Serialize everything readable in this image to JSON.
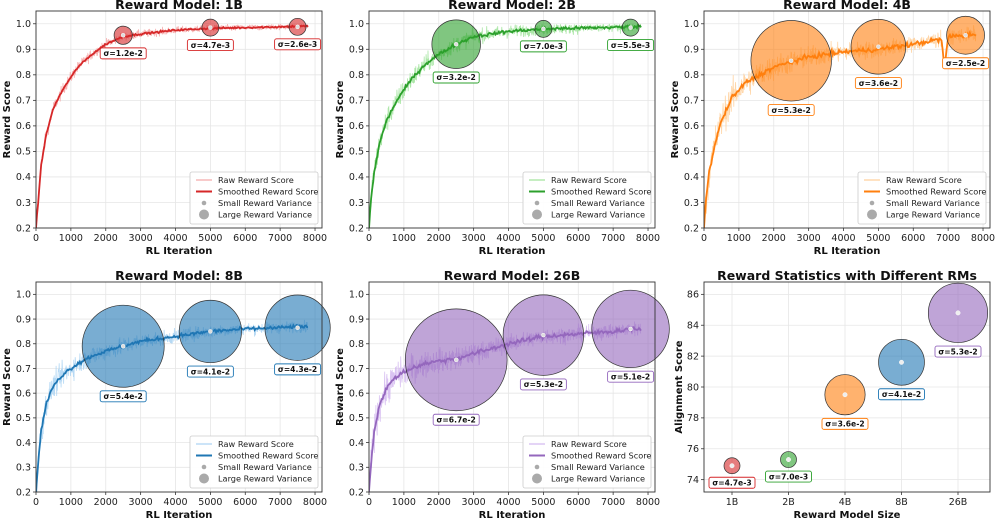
{
  "figure": {
    "panels": [
      {
        "title": "Reward Model: 1B",
        "xlabel": "RL Iteration",
        "ylabel": "Reward Score",
        "xlim": [
          0,
          8200
        ],
        "ylim": [
          0.2,
          1.05
        ],
        "xticks": [
          0,
          1000,
          2000,
          3000,
          4000,
          5000,
          6000,
          7000,
          8000
        ],
        "yticks": [
          0.2,
          0.3,
          0.4,
          0.5,
          0.6,
          0.7,
          0.8,
          0.9,
          1.0
        ],
        "color": "#d62728",
        "light": "#f4a6a6"
      },
      {
        "title": "Reward Model: 2B",
        "xlabel": "RL Iteration",
        "ylabel": "Reward Score",
        "xlim": [
          0,
          8200
        ],
        "ylim": [
          0.2,
          1.05
        ],
        "xticks": [
          0,
          1000,
          2000,
          3000,
          4000,
          5000,
          6000,
          7000,
          8000
        ],
        "yticks": [
          0.2,
          0.3,
          0.4,
          0.5,
          0.6,
          0.7,
          0.8,
          0.9,
          1.0
        ],
        "color": "#2ca02c",
        "light": "#9fe39a"
      },
      {
        "title": "Reward Model: 4B",
        "xlabel": "RL Iteration",
        "ylabel": "Reward Score",
        "xlim": [
          0,
          8200
        ],
        "ylim": [
          0.2,
          1.05
        ],
        "xticks": [
          0,
          1000,
          2000,
          3000,
          4000,
          5000,
          6000,
          7000,
          8000
        ],
        "yticks": [
          0.2,
          0.3,
          0.4,
          0.5,
          0.6,
          0.7,
          0.8,
          0.9,
          1.0
        ],
        "color": "#ff7f0e",
        "light": "#ffcf99"
      },
      {
        "title": "Reward Model: 8B",
        "xlabel": "RL Iteration",
        "ylabel": "Reward Score",
        "xlim": [
          0,
          8200
        ],
        "ylim": [
          0.2,
          1.05
        ],
        "xticks": [
          0,
          1000,
          2000,
          3000,
          4000,
          5000,
          6000,
          7000,
          8000
        ],
        "yticks": [
          0.2,
          0.3,
          0.4,
          0.5,
          0.6,
          0.7,
          0.8,
          0.9,
          1.0
        ],
        "color": "#1f77b4",
        "light": "#a9d2f2"
      },
      {
        "title": "Reward Model: 26B",
        "xlabel": "RL Iteration",
        "ylabel": "Reward Score",
        "xlim": [
          0,
          8200
        ],
        "ylim": [
          0.2,
          1.05
        ],
        "xticks": [
          0,
          1000,
          2000,
          3000,
          4000,
          5000,
          6000,
          7000,
          8000
        ],
        "yticks": [
          0.2,
          0.3,
          0.4,
          0.5,
          0.6,
          0.7,
          0.8,
          0.9,
          1.0
        ],
        "color": "#9467bd",
        "light": "#d3b8f0"
      }
    ],
    "legend": [
      "Raw Reward Score",
      "Smoothed Reward Score",
      "Small Reward Variance",
      "Large Reward Variance"
    ],
    "summary": {
      "title": "Reward Statistics with Different RMs",
      "xlabel": "Reward Model Size",
      "ylabel": "Alignment Score",
      "ylim": [
        73.2,
        86.8
      ],
      "yticks": [
        74,
        76,
        78,
        80,
        82,
        84,
        86
      ],
      "categories": [
        "1B",
        "2B",
        "4B",
        "8B",
        "26B"
      ]
    }
  },
  "chart_data": [
    {
      "type": "line",
      "title": "Reward Model: 1B",
      "xlabel": "RL Iteration",
      "ylabel": "Reward Score",
      "series": [
        {
          "name": "Raw Reward Score",
          "x": [
            0,
            50,
            150,
            300,
            500,
            800,
            1200,
            1600,
            2000,
            2500,
            3000,
            4000,
            5000,
            6000,
            7000,
            7500,
            7800
          ],
          "y": [
            0.2,
            0.28,
            0.45,
            0.57,
            0.67,
            0.75,
            0.83,
            0.88,
            0.92,
            0.95,
            0.96,
            0.975,
            0.982,
            0.985,
            0.988,
            0.99,
            0.99
          ]
        },
        {
          "name": "Smoothed Reward Score",
          "x": [
            0,
            50,
            150,
            300,
            500,
            800,
            1200,
            1600,
            2000,
            2500,
            3000,
            4000,
            5000,
            6000,
            7000,
            7500,
            7800
          ],
          "y": [
            0.2,
            0.28,
            0.45,
            0.57,
            0.67,
            0.75,
            0.83,
            0.88,
            0.92,
            0.95,
            0.96,
            0.975,
            0.982,
            0.985,
            0.988,
            0.99,
            0.99
          ]
        }
      ],
      "variance_points": [
        {
          "x": 2500,
          "y": 0.955,
          "sigma": 0.012,
          "label": "σ=1.2e-2"
        },
        {
          "x": 5000,
          "y": 0.985,
          "sigma": 0.0047,
          "label": "σ=4.7e-3"
        },
        {
          "x": 7500,
          "y": 0.988,
          "sigma": 0.0026,
          "label": "σ=2.6e-3"
        }
      ]
    },
    {
      "type": "line",
      "title": "Reward Model: 2B",
      "xlabel": "RL Iteration",
      "ylabel": "Reward Score",
      "series": [
        {
          "name": "Raw Reward Score",
          "x": [
            0,
            50,
            150,
            300,
            500,
            800,
            1200,
            1600,
            2000,
            2500,
            3000,
            4000,
            5000,
            6000,
            7000,
            7500,
            7800
          ],
          "y": [
            0.2,
            0.3,
            0.42,
            0.53,
            0.62,
            0.7,
            0.78,
            0.84,
            0.88,
            0.92,
            0.95,
            0.97,
            0.98,
            0.983,
            0.986,
            0.988,
            0.99
          ]
        },
        {
          "name": "Smoothed Reward Score",
          "x": [
            0,
            50,
            150,
            300,
            500,
            800,
            1200,
            1600,
            2000,
            2500,
            3000,
            4000,
            5000,
            6000,
            7000,
            7500,
            7800
          ],
          "y": [
            0.2,
            0.3,
            0.42,
            0.53,
            0.62,
            0.7,
            0.78,
            0.84,
            0.88,
            0.92,
            0.95,
            0.97,
            0.98,
            0.983,
            0.986,
            0.988,
            0.99
          ]
        }
      ],
      "variance_points": [
        {
          "x": 2500,
          "y": 0.92,
          "sigma": 0.032,
          "label": "σ=3.2e-2"
        },
        {
          "x": 5000,
          "y": 0.98,
          "sigma": 0.007,
          "label": "σ=7.0e-3"
        },
        {
          "x": 7500,
          "y": 0.985,
          "sigma": 0.0055,
          "label": "σ=5.5e-3"
        }
      ]
    },
    {
      "type": "line",
      "title": "Reward Model: 4B",
      "xlabel": "RL Iteration",
      "ylabel": "Reward Score",
      "series": [
        {
          "name": "Raw Reward Score",
          "x": [
            0,
            50,
            150,
            300,
            500,
            800,
            1200,
            1600,
            2000,
            2500,
            3000,
            4000,
            5000,
            6000,
            6800,
            6900,
            7000,
            7500,
            7800
          ],
          "y": [
            0.2,
            0.3,
            0.42,
            0.52,
            0.62,
            0.71,
            0.77,
            0.8,
            0.83,
            0.85,
            0.87,
            0.89,
            0.9,
            0.92,
            0.94,
            0.83,
            0.95,
            0.955,
            0.96
          ]
        },
        {
          "name": "Smoothed Reward Score",
          "x": [
            0,
            50,
            150,
            300,
            500,
            800,
            1200,
            1600,
            2000,
            2500,
            3000,
            4000,
            5000,
            6000,
            6800,
            6900,
            7000,
            7500,
            7800
          ],
          "y": [
            0.2,
            0.3,
            0.42,
            0.52,
            0.62,
            0.71,
            0.77,
            0.8,
            0.83,
            0.85,
            0.87,
            0.89,
            0.9,
            0.92,
            0.94,
            0.83,
            0.95,
            0.955,
            0.96
          ]
        }
      ],
      "variance_points": [
        {
          "x": 2500,
          "y": 0.855,
          "sigma": 0.053,
          "label": "σ=5.3e-2"
        },
        {
          "x": 5000,
          "y": 0.91,
          "sigma": 0.036,
          "label": "σ=3.6e-2"
        },
        {
          "x": 7500,
          "y": 0.955,
          "sigma": 0.025,
          "label": "σ=2.5e-2"
        }
      ]
    },
    {
      "type": "line",
      "title": "Reward Model: 8B",
      "xlabel": "RL Iteration",
      "ylabel": "Reward Score",
      "series": [
        {
          "name": "Raw Reward Score",
          "x": [
            0,
            50,
            150,
            300,
            500,
            800,
            1200,
            1600,
            2000,
            2500,
            3000,
            4000,
            5000,
            6000,
            7000,
            7500,
            7800
          ],
          "y": [
            0.2,
            0.3,
            0.45,
            0.56,
            0.63,
            0.68,
            0.72,
            0.75,
            0.77,
            0.79,
            0.81,
            0.83,
            0.85,
            0.86,
            0.865,
            0.87,
            0.87
          ]
        },
        {
          "name": "Smoothed Reward Score",
          "x": [
            0,
            50,
            150,
            300,
            500,
            800,
            1200,
            1600,
            2000,
            2500,
            3000,
            4000,
            5000,
            6000,
            7000,
            7500,
            7800
          ],
          "y": [
            0.2,
            0.3,
            0.45,
            0.56,
            0.63,
            0.68,
            0.72,
            0.75,
            0.77,
            0.79,
            0.81,
            0.83,
            0.85,
            0.86,
            0.865,
            0.87,
            0.87
          ]
        }
      ],
      "variance_points": [
        {
          "x": 2500,
          "y": 0.79,
          "sigma": 0.054,
          "label": "σ=5.4e-2"
        },
        {
          "x": 5000,
          "y": 0.85,
          "sigma": 0.041,
          "label": "σ=4.1e-2"
        },
        {
          "x": 7500,
          "y": 0.865,
          "sigma": 0.043,
          "label": "σ=4.3e-2"
        }
      ]
    },
    {
      "type": "line",
      "title": "Reward Model: 26B",
      "xlabel": "RL Iteration",
      "ylabel": "Reward Score",
      "series": [
        {
          "name": "Raw Reward Score",
          "x": [
            0,
            50,
            150,
            300,
            500,
            800,
            1200,
            1600,
            2000,
            2500,
            3000,
            4000,
            5000,
            6000,
            7000,
            7500,
            7800
          ],
          "y": [
            0.2,
            0.3,
            0.45,
            0.55,
            0.62,
            0.67,
            0.7,
            0.72,
            0.73,
            0.74,
            0.76,
            0.8,
            0.83,
            0.84,
            0.85,
            0.86,
            0.86
          ]
        },
        {
          "name": "Smoothed Reward Score",
          "x": [
            0,
            50,
            150,
            300,
            500,
            800,
            1200,
            1600,
            2000,
            2500,
            3000,
            4000,
            5000,
            6000,
            7000,
            7500,
            7800
          ],
          "y": [
            0.2,
            0.3,
            0.45,
            0.55,
            0.62,
            0.67,
            0.7,
            0.72,
            0.73,
            0.74,
            0.76,
            0.8,
            0.83,
            0.84,
            0.85,
            0.86,
            0.86
          ]
        }
      ],
      "variance_points": [
        {
          "x": 2500,
          "y": 0.735,
          "sigma": 0.067,
          "label": "σ=6.7e-2"
        },
        {
          "x": 5000,
          "y": 0.835,
          "sigma": 0.053,
          "label": "σ=5.3e-2"
        },
        {
          "x": 7500,
          "y": 0.86,
          "sigma": 0.051,
          "label": "σ=5.1e-2"
        }
      ]
    },
    {
      "type": "scatter",
      "title": "Reward Statistics with Different RMs",
      "xlabel": "Reward Model Size",
      "ylabel": "Alignment Score",
      "categories": [
        "1B",
        "2B",
        "4B",
        "8B",
        "26B"
      ],
      "values": [
        74.9,
        75.3,
        79.5,
        81.6,
        84.8
      ],
      "sigma": [
        0.0047,
        0.007,
        0.036,
        0.041,
        0.053
      ],
      "labels": [
        "σ=4.7e-3",
        "σ=7.0e-3",
        "σ=3.6e-2",
        "σ=4.1e-2",
        "σ=5.3e-2"
      ],
      "colors": [
        "#d62728",
        "#2ca02c",
        "#ff7f0e",
        "#1f77b4",
        "#9467bd"
      ],
      "ylim": [
        73.2,
        86.8
      ]
    }
  ]
}
